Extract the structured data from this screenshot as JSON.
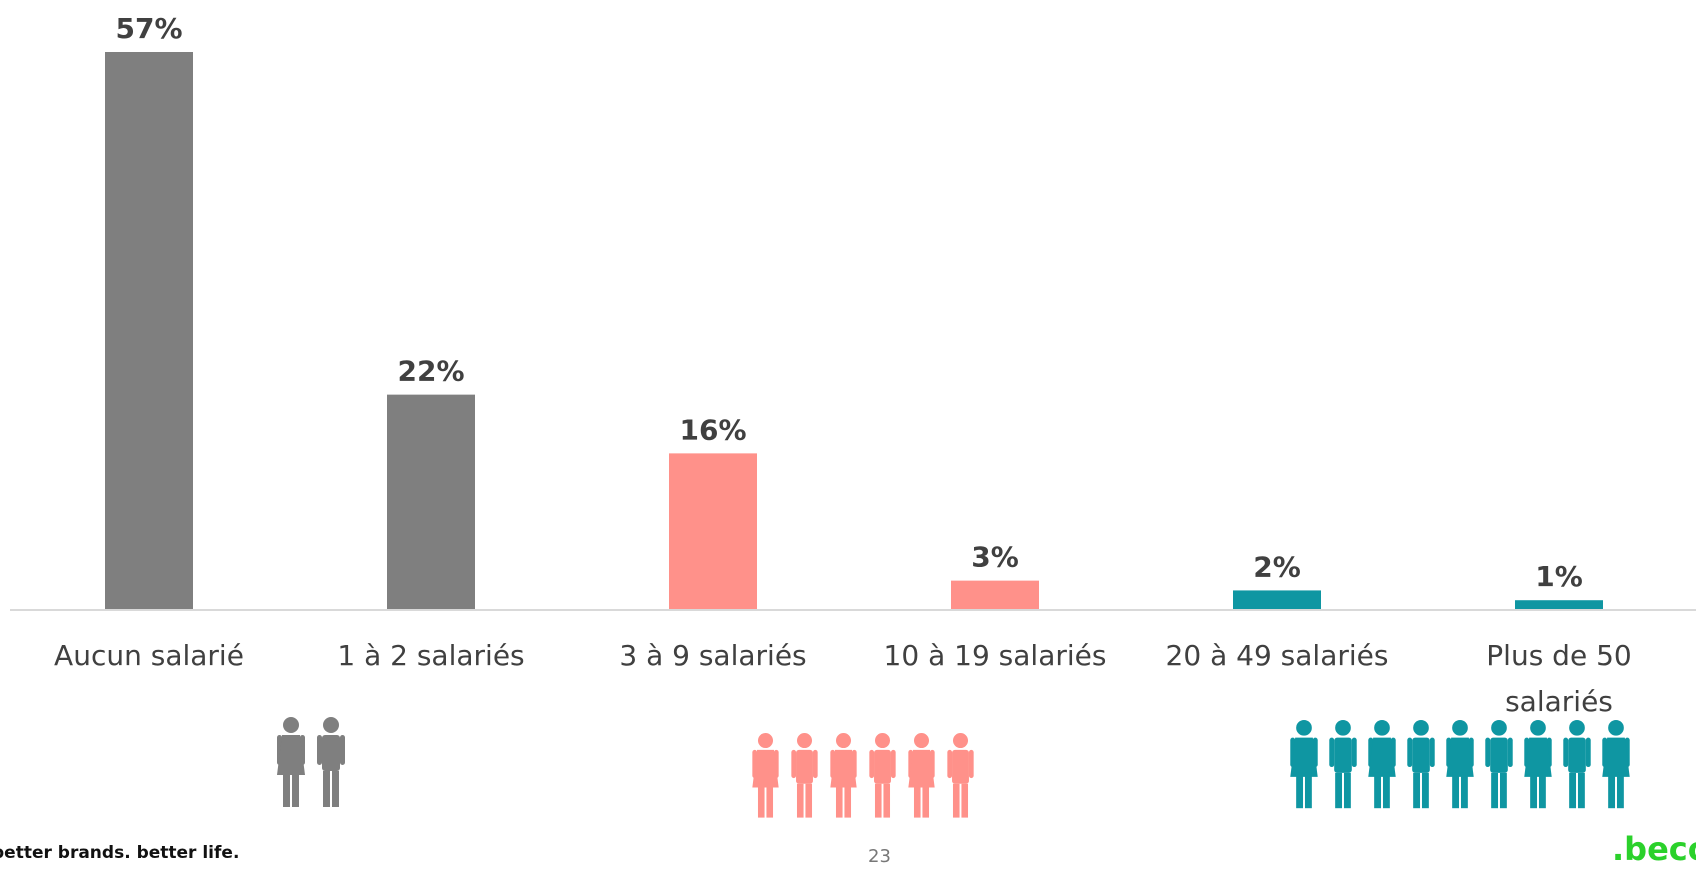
{
  "chart_data": {
    "type": "bar",
    "categories": [
      "Aucun salarié",
      "1 à 2 salariés",
      "3 à 9 salariés",
      "10 à 19 salariés",
      "20 à 49 salariés",
      "Plus de 50 salariés"
    ],
    "values": [
      57,
      22,
      16,
      3,
      2,
      1
    ],
    "data_labels": [
      "57%",
      "22%",
      "16%",
      "3%",
      "2%",
      "1%"
    ],
    "colors": [
      "#7f7f7f",
      "#7f7f7f",
      "#ff918a",
      "#ff918a",
      "#0f96a2",
      "#0f96a2"
    ],
    "ylim": [
      0,
      57
    ],
    "grid": false,
    "legend": "none"
  },
  "icon_groups": [
    {
      "icon": "two-people-icon",
      "color": "#7f7f7f",
      "count": 2
    },
    {
      "icon": "small-group-icon",
      "color": "#ff918a",
      "count": 6
    },
    {
      "icon": "large-group-icon",
      "color": "#0f96a2",
      "count": 9
    }
  ],
  "footer": {
    "tagline": "better brands. better life.",
    "page_number": "23",
    "logo": ".beco"
  }
}
